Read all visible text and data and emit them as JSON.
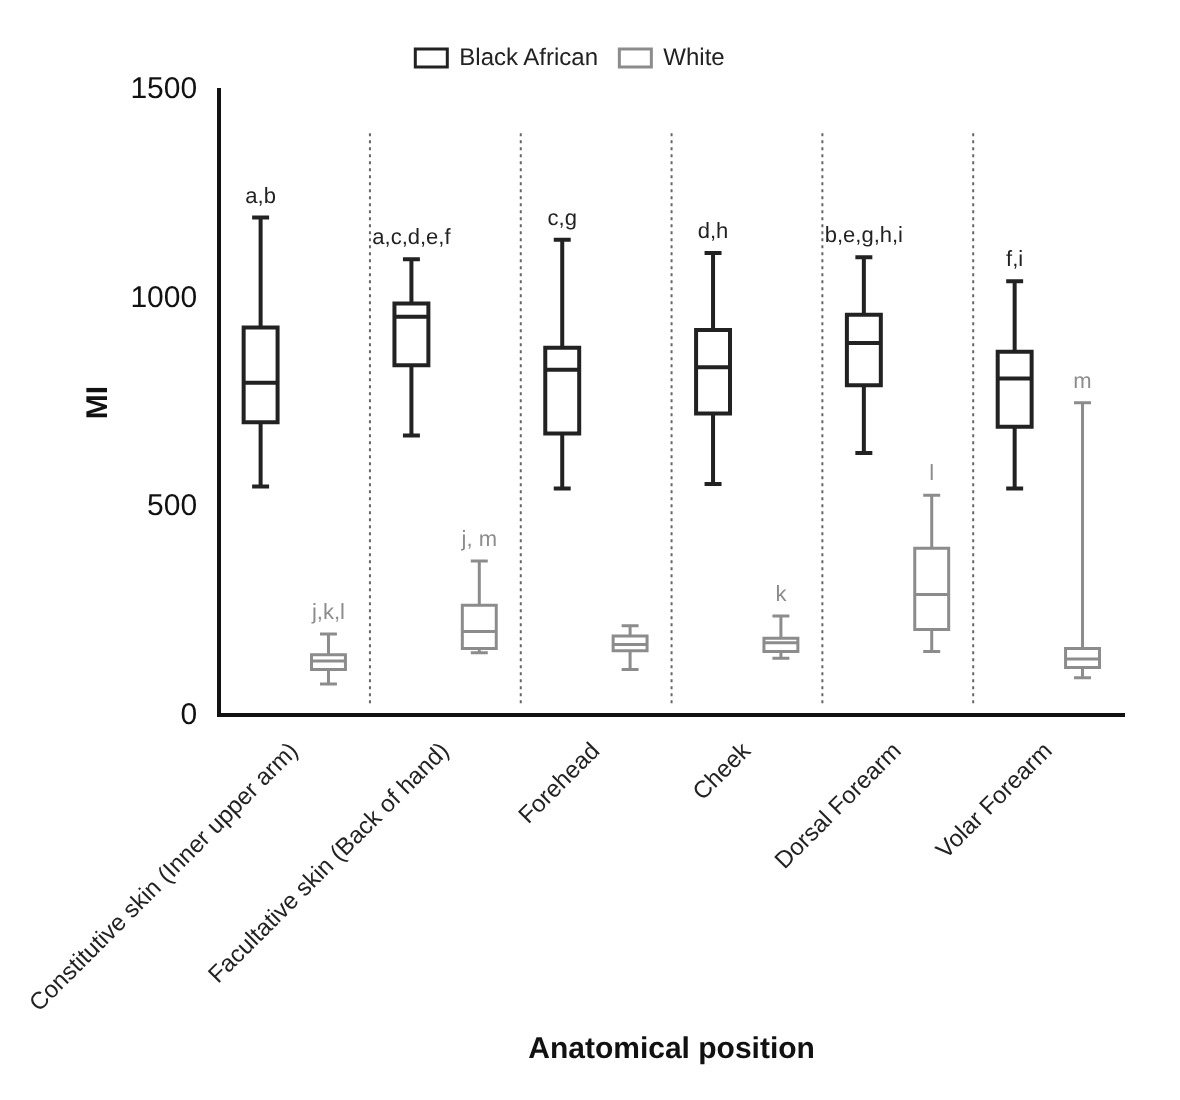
{
  "chart_data": {
    "type": "box",
    "xlabel": "Anatomical position",
    "ylabel": "MI",
    "categories": [
      "Constitutive skin (Inner upper arm)",
      "Facultative skin (Back of hand)",
      "Forehead",
      "Cheek",
      "Dorsal Forearm",
      "Volar Forearm"
    ],
    "series": [
      {
        "name": "Black African",
        "color": "#222222",
        "boxes": [
          {
            "low": 549,
            "q1": 703,
            "median": 798,
            "q3": 930,
            "high": 1194
          },
          {
            "low": 671,
            "q1": 840,
            "median": 956,
            "q3": 988,
            "high": 1094
          },
          {
            "low": 544,
            "q1": 676,
            "median": 829,
            "q3": 882,
            "high": 1141
          },
          {
            "low": 555,
            "q1": 724,
            "median": 835,
            "q3": 924,
            "high": 1109
          },
          {
            "low": 629,
            "q1": 792,
            "median": 893,
            "q3": 961,
            "high": 1099
          },
          {
            "low": 544,
            "q1": 692,
            "median": 808,
            "q3": 872,
            "high": 1041
          }
        ],
        "value_labels": [
          "a,b",
          "a,c,d,e,f",
          "c,g",
          "d,h",
          "b,e,g,h,i",
          "f,i"
        ]
      },
      {
        "name": "White",
        "color": "#8c8c8c",
        "boxes": [
          {
            "low": 75,
            "q1": 110,
            "median": 130,
            "q3": 145,
            "high": 195
          },
          {
            "low": 150,
            "q1": 160,
            "median": 201,
            "q3": 264,
            "high": 370
          },
          {
            "low": 110,
            "q1": 155,
            "median": 170,
            "q3": 190,
            "high": 215
          },
          {
            "low": 137,
            "q1": 153,
            "median": 174,
            "q3": 185,
            "high": 238
          },
          {
            "low": 153,
            "q1": 206,
            "median": 290,
            "q3": 401,
            "high": 528
          },
          {
            "low": 90,
            "q1": 115,
            "median": 135,
            "q3": 160,
            "high": 750
          }
        ],
        "value_labels": [
          "j,k,l",
          "j, m",
          null,
          "k",
          "l",
          "m"
        ]
      }
    ],
    "ylim": [
      0,
      1500
    ],
    "yticks": [
      0,
      500,
      1000,
      1500
    ],
    "grid": "x",
    "legend": "top"
  }
}
